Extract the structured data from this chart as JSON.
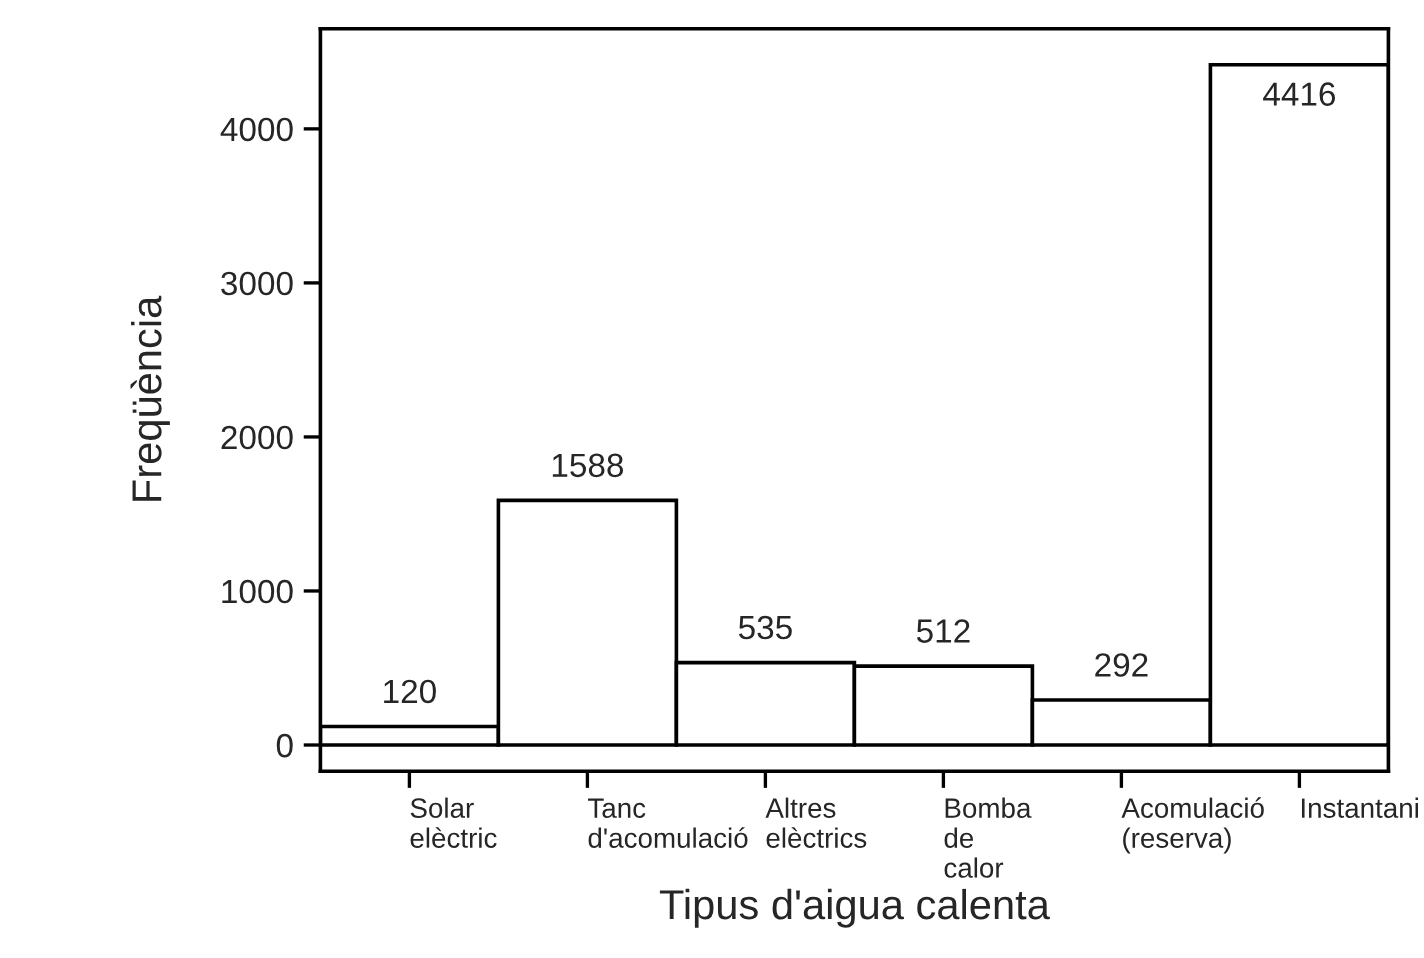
{
  "chart_data": {
    "type": "bar",
    "xlabel": "Tipus d'aigua calenta",
    "ylabel": "Freqüència",
    "categories": [
      "Solar\nelèctric",
      "Tanc\nd'acomulació",
      "Altres\nelèctrics",
      "Bomba\nde\ncalor",
      "Acomulació\n(reserva)",
      "Instantani"
    ],
    "values": [
      120,
      1588,
      535,
      512,
      292,
      4416
    ],
    "color": "#ffffff",
    "ylim": [
      -170,
      4650
    ],
    "yticks": [
      0,
      1000,
      2000,
      3000,
      4000
    ],
    "data_labels": true,
    "grid": false,
    "legend": false
  }
}
